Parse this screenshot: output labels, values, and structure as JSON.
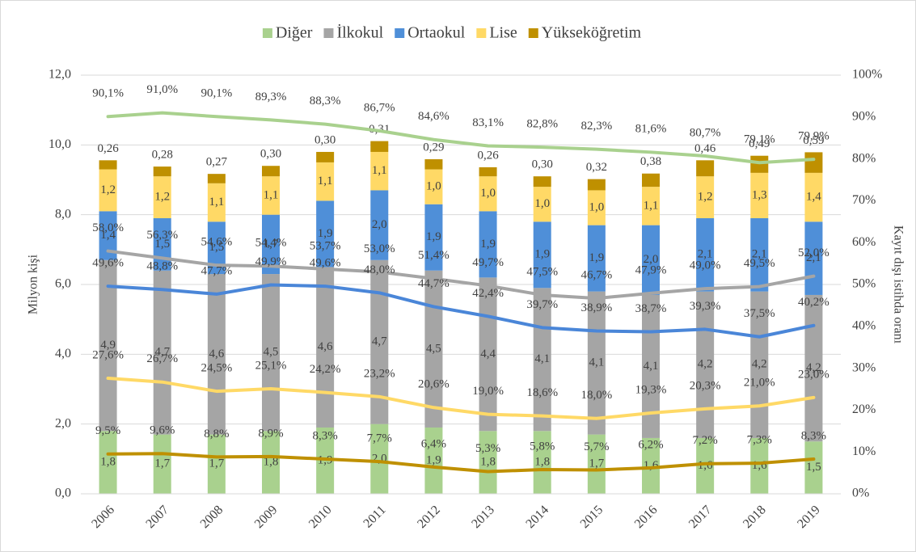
{
  "chart_data": {
    "type": "bar",
    "stacked": true,
    "ylabel": "Milyon kişi",
    "y2label": "Kayıt dışı istihda oranı",
    "categories": [
      "2006",
      "2007",
      "2008",
      "2009",
      "2010",
      "2011",
      "2012",
      "2013",
      "2014",
      "2015",
      "2016",
      "2017",
      "2018",
      "2019"
    ],
    "ylim": [
      0,
      12
    ],
    "yticks": [
      {
        "value": 0,
        "label": "0,0"
      },
      {
        "value": 2,
        "label": "2,0"
      },
      {
        "value": 4,
        "label": "4,0"
      },
      {
        "value": 6,
        "label": "6,0"
      },
      {
        "value": 8,
        "label": "8,0"
      },
      {
        "value": 10,
        "label": "10,0"
      },
      {
        "value": 12,
        "label": "12,0"
      }
    ],
    "y2lim": [
      0,
      100
    ],
    "y2ticks": [
      {
        "value": 0,
        "label": "0%"
      },
      {
        "value": 10,
        "label": "10%"
      },
      {
        "value": 20,
        "label": "20%"
      },
      {
        "value": 30,
        "label": "30%"
      },
      {
        "value": 40,
        "label": "40%"
      },
      {
        "value": 50,
        "label": "50%"
      },
      {
        "value": 60,
        "label": "60%"
      },
      {
        "value": 70,
        "label": "70%"
      },
      {
        "value": 80,
        "label": "80%"
      },
      {
        "value": 90,
        "label": "90%"
      },
      {
        "value": 100,
        "label": "100%"
      }
    ],
    "legend": "top",
    "series": [
      {
        "name": "Diğer",
        "type": "bar",
        "color": "#a9d18e",
        "values": [
          1.8,
          1.7,
          1.7,
          1.8,
          1.9,
          2.0,
          1.9,
          1.8,
          1.8,
          1.7,
          1.6,
          1.6,
          1.6,
          1.5
        ],
        "value_labels": [
          "1,8",
          "1,7",
          "1,7",
          "1,8",
          "1,9",
          "2,0",
          "1,9",
          "1,8",
          "1,8",
          "1,7",
          "1,6",
          "1,6",
          "1,6",
          "1,5"
        ]
      },
      {
        "name": "İlkokul",
        "type": "bar",
        "color": "#a5a5a5",
        "values": [
          4.9,
          4.7,
          4.6,
          4.5,
          4.6,
          4.7,
          4.5,
          4.4,
          4.1,
          4.1,
          4.1,
          4.2,
          4.2,
          4.2
        ],
        "value_labels": [
          "4,9",
          "4,7",
          "4,6",
          "4,5",
          "4,6",
          "4,7",
          "4,5",
          "4,4",
          "4,1",
          "4,1",
          "4,1",
          "4,2",
          "4,2",
          "4,2"
        ]
      },
      {
        "name": "Ortaokul",
        "type": "bar",
        "color": "#4f8fd8",
        "values": [
          1.4,
          1.5,
          1.5,
          1.7,
          1.9,
          2.0,
          1.9,
          1.9,
          1.9,
          1.9,
          2.0,
          2.1,
          2.1,
          2.1
        ],
        "value_labels": [
          "1,4",
          "1,5",
          "1,5",
          "1,7",
          "1,9",
          "2,0",
          "1,9",
          "1,9",
          "1,9",
          "1,9",
          "2,0",
          "2,1",
          "2,1",
          "2,1"
        ]
      },
      {
        "name": "Lise",
        "type": "bar",
        "color": "#ffd966",
        "values": [
          1.2,
          1.2,
          1.1,
          1.1,
          1.1,
          1.1,
          1.0,
          1.0,
          1.0,
          1.0,
          1.1,
          1.2,
          1.3,
          1.4
        ],
        "value_labels": [
          "1,2",
          "1,2",
          "1,1",
          "1,1",
          "1,1",
          "1,1",
          "1,0",
          "1,0",
          "1,0",
          "1,0",
          "1,1",
          "1,2",
          "1,3",
          "1,4"
        ]
      },
      {
        "name": "Yükseköğretim",
        "type": "bar",
        "color": "#bf9000",
        "values": [
          0.26,
          0.28,
          0.27,
          0.3,
          0.3,
          0.31,
          0.29,
          0.26,
          0.3,
          0.32,
          0.38,
          0.46,
          0.49,
          0.59
        ],
        "value_labels": [
          "0,26",
          "0,28",
          "0,27",
          "0,30",
          "0,30",
          "0,31",
          "0,29",
          "0,26",
          "0,30",
          "0,32",
          "0,38",
          "0,46",
          "0,49",
          "0,59"
        ]
      },
      {
        "type": "line",
        "axis": "y2",
        "color": "#a9d18e",
        "values": [
          90.1,
          91.0,
          90.1,
          89.3,
          88.3,
          86.7,
          84.6,
          83.1,
          82.8,
          82.3,
          81.6,
          80.7,
          79.1,
          79.9
        ],
        "value_labels": [
          "90,1%",
          "91,0%",
          "90,1%",
          "89,3%",
          "88,3%",
          "86,7%",
          "84,6%",
          "83,1%",
          "82,8%",
          "82,3%",
          "81,6%",
          "80,7%",
          "79,1%",
          "79,9%"
        ]
      },
      {
        "type": "line",
        "axis": "y2",
        "color": "#a5a5a5",
        "values": [
          58.0,
          56.3,
          54.6,
          54.4,
          53.7,
          53.0,
          51.4,
          49.7,
          47.5,
          46.7,
          47.9,
          49.0,
          49.5,
          52.0
        ],
        "value_labels": [
          "58,0%",
          "56,3%",
          "54,6%",
          "54,4%",
          "53,7%",
          "53,0%",
          "51,4%",
          "49,7%",
          "47,5%",
          "46,7%",
          "47,9%",
          "49,0%",
          "49,5%",
          "52,0%"
        ]
      },
      {
        "type": "line",
        "axis": "y2",
        "color": "#4a86d8",
        "values": [
          49.6,
          48.8,
          47.7,
          49.9,
          49.6,
          48.0,
          44.7,
          42.4,
          39.7,
          38.9,
          38.7,
          39.3,
          37.5,
          40.2
        ],
        "value_labels": [
          "49,6%",
          "48,8%",
          "47,7%",
          "49,9%",
          "49,6%",
          "48,0%",
          "44,7%",
          "42,4%",
          "39,7%",
          "38,9%",
          "38,7%",
          "39,3%",
          "37,5%",
          "40,2%"
        ]
      },
      {
        "type": "line",
        "axis": "y2",
        "color": "#ffd966",
        "values": [
          27.6,
          26.7,
          24.5,
          25.1,
          24.2,
          23.2,
          20.6,
          19.0,
          18.6,
          18.0,
          19.3,
          20.3,
          21.0,
          23.0
        ],
        "value_labels": [
          "27,6%",
          "26,7%",
          "24,5%",
          "25,1%",
          "24,2%",
          "23,2%",
          "20,6%",
          "19,0%",
          "18,6%",
          "18,0%",
          "19,3%",
          "20,3%",
          "21,0%",
          "23,0%"
        ]
      },
      {
        "type": "line",
        "axis": "y2",
        "color": "#bf9000",
        "values": [
          9.5,
          9.6,
          8.8,
          8.9,
          8.3,
          7.7,
          6.4,
          5.3,
          5.8,
          5.7,
          6.2,
          7.2,
          7.3,
          8.3
        ],
        "value_labels": [
          "9,5%",
          "9,6%",
          "8,8%",
          "8,9%",
          "8,3%",
          "7,7%",
          "6,4%",
          "5,3%",
          "5,8%",
          "5,7%",
          "6,2%",
          "7,2%",
          "7,3%",
          "8,3%"
        ]
      }
    ]
  }
}
